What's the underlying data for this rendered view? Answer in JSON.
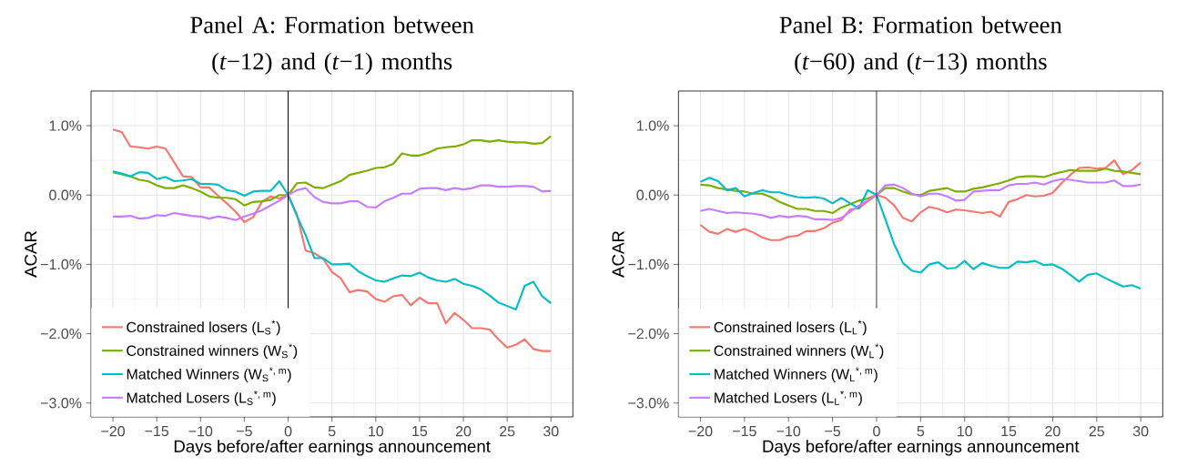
{
  "chart_data": [
    {
      "type": "line",
      "title": "Panel A: Formation between (*t*−12) and (*t*−1) months",
      "xlabel": "Days before/after earnings announcement",
      "ylabel": "ACAR",
      "x": [
        -20,
        -19,
        -18,
        -17,
        -16,
        -15,
        -14,
        -13,
        -12,
        -11,
        -10,
        -9,
        -8,
        -7,
        -6,
        -5,
        -4,
        -3,
        -2,
        -1,
        0,
        1,
        2,
        3,
        4,
        5,
        6,
        7,
        8,
        9,
        10,
        11,
        12,
        13,
        14,
        15,
        16,
        17,
        18,
        19,
        20,
        21,
        22,
        23,
        24,
        25,
        26,
        27,
        28,
        29,
        30
      ],
      "series": [
        {
          "name": "Constrained losers (L$_{S}$$^{*}$)",
          "color": "#f8766d",
          "values": [
            0.945,
            0.91,
            0.7,
            0.69,
            0.67,
            0.7,
            0.67,
            0.47,
            0.27,
            0.26,
            0.11,
            0.11,
            -0.01,
            -0.12,
            -0.24,
            -0.39,
            -0.32,
            -0.1,
            -0.02,
            -0.05,
            0,
            -0.28,
            -0.8,
            -0.84,
            -0.92,
            -1.11,
            -1.2,
            -1.4,
            -1.37,
            -1.39,
            -1.5,
            -1.54,
            -1.46,
            -1.44,
            -1.59,
            -1.48,
            -1.56,
            -1.56,
            -1.85,
            -1.7,
            -1.8,
            -1.92,
            -1.92,
            -1.94,
            -2.08,
            -2.2,
            -2.16,
            -2.08,
            -2.22,
            -2.25,
            -2.25
          ]
        },
        {
          "name": "Constrained winners (W$_{S}$$^{*}$)",
          "color": "#7cae00",
          "values": [
            0.33,
            0.3,
            0.27,
            0.22,
            0.2,
            0.14,
            0.1,
            0.1,
            0.14,
            0.1,
            0.05,
            -0.02,
            -0.04,
            -0.04,
            -0.06,
            -0.15,
            -0.1,
            -0.09,
            -0.07,
            0,
            0,
            0.17,
            0.18,
            0.11,
            0.1,
            0.15,
            0.2,
            0.29,
            0.32,
            0.35,
            0.39,
            0.4,
            0.45,
            0.6,
            0.57,
            0.57,
            0.61,
            0.67,
            0.69,
            0.7,
            0.73,
            0.79,
            0.79,
            0.77,
            0.79,
            0.77,
            0.76,
            0.76,
            0.74,
            0.75,
            0.85
          ]
        },
        {
          "name": "Matched Winners (W$_{S}$$^{*, m}$)",
          "color": "#00bfc4",
          "values": [
            0.34,
            0.31,
            0.27,
            0.33,
            0.32,
            0.23,
            0.26,
            0.2,
            0.21,
            0.23,
            0.16,
            0.16,
            0.15,
            0.07,
            0.05,
            -0.01,
            0.05,
            0.06,
            0.06,
            0.2,
            0,
            -0.3,
            -0.58,
            -0.91,
            -0.91,
            -1.0,
            -1.0,
            -0.99,
            -1.1,
            -1.17,
            -1.23,
            -1.25,
            -1.2,
            -1.16,
            -1.17,
            -1.12,
            -1.19,
            -1.23,
            -1.25,
            -1.21,
            -1.28,
            -1.31,
            -1.36,
            -1.45,
            -1.55,
            -1.6,
            -1.65,
            -1.31,
            -1.25,
            -1.46,
            -1.56
          ]
        },
        {
          "name": "Matched Losers (L$_{S}$$^{*, m}$)",
          "color": "#c77cff",
          "values": [
            -0.31,
            -0.31,
            -0.3,
            -0.34,
            -0.33,
            -0.29,
            -0.3,
            -0.26,
            -0.28,
            -0.3,
            -0.31,
            -0.34,
            -0.31,
            -0.33,
            -0.36,
            -0.31,
            -0.27,
            -0.22,
            -0.15,
            -0.08,
            0,
            0.07,
            0.1,
            -0.03,
            -0.1,
            -0.12,
            -0.12,
            -0.09,
            -0.09,
            -0.17,
            -0.18,
            -0.09,
            -0.04,
            0.02,
            0.02,
            0.09,
            0.1,
            0.1,
            0.07,
            0.1,
            0.08,
            0.1,
            0.14,
            0.14,
            0.12,
            0.12,
            0.13,
            0.13,
            0.12,
            0.05,
            0.06
          ]
        }
      ],
      "xlim": [
        -22.5,
        32.5
      ],
      "ylim": [
        -3.2,
        1.5
      ],
      "xticks": [
        {
          "value": -20,
          "label": "−20"
        },
        {
          "value": -15,
          "label": "−15"
        },
        {
          "value": -10,
          "label": "−10"
        },
        {
          "value": -5,
          "label": "−5"
        },
        0,
        5,
        10,
        15,
        20,
        25,
        30
      ],
      "yticks": [
        {
          "value": -3,
          "label": "−3.0%"
        },
        {
          "value": -2,
          "label": "−2.0%"
        },
        {
          "value": -1,
          "label": "−1.0%"
        },
        {
          "value": 0,
          "label": "0.0%"
        },
        {
          "value": 1,
          "label": "1.0%"
        }
      ],
      "grid": true,
      "legend": "bottom left",
      "ref_lines": [
        {
          "axis": "x",
          "value": 0,
          "color": "#000000"
        }
      ]
    },
    {
      "type": "line",
      "title": "Panel B: Formation between (*t*−60) and (*t*−13) months",
      "xlabel": "Days before/after earnings announcement",
      "ylabel": "ACAR",
      "x": [
        -20,
        -19,
        -18,
        -17,
        -16,
        -15,
        -14,
        -13,
        -12,
        -11,
        -10,
        -9,
        -8,
        -7,
        -6,
        -5,
        -4,
        -3,
        -2,
        -1,
        0,
        1,
        2,
        3,
        4,
        5,
        6,
        7,
        8,
        9,
        10,
        11,
        12,
        13,
        14,
        15,
        16,
        17,
        18,
        19,
        20,
        21,
        22,
        23,
        24,
        25,
        26,
        27,
        28,
        29,
        30
      ],
      "series": [
        {
          "name": "Constrained losers (L$_{L}$$^{*}$)",
          "color": "#f8766d",
          "values": [
            -0.43,
            -0.53,
            -0.56,
            -0.49,
            -0.53,
            -0.49,
            -0.54,
            -0.61,
            -0.65,
            -0.65,
            -0.6,
            -0.59,
            -0.52,
            -0.52,
            -0.48,
            -0.4,
            -0.36,
            -0.21,
            -0.19,
            -0.09,
            0,
            -0.04,
            -0.15,
            -0.33,
            -0.38,
            -0.25,
            -0.17,
            -0.2,
            -0.25,
            -0.21,
            -0.22,
            -0.24,
            -0.26,
            -0.24,
            -0.31,
            -0.1,
            -0.06,
            0,
            -0.02,
            -0.01,
            0.03,
            0.17,
            0.29,
            0.39,
            0.4,
            0.38,
            0.39,
            0.5,
            0.3,
            0.36,
            0.47
          ]
        },
        {
          "name": "Constrained winners (W$_{L}$$^{*}$)",
          "color": "#7cae00",
          "values": [
            0.15,
            0.14,
            0.1,
            0.08,
            0.06,
            0.05,
            0.02,
            0.02,
            -0.03,
            -0.1,
            -0.15,
            -0.2,
            -0.2,
            -0.23,
            -0.23,
            -0.26,
            -0.18,
            -0.13,
            -0.08,
            -0.05,
            0,
            0.1,
            0.1,
            0.05,
            0.01,
            0,
            0.06,
            0.08,
            0.1,
            0.05,
            0.05,
            0.09,
            0.11,
            0.14,
            0.17,
            0.21,
            0.26,
            0.27,
            0.27,
            0.26,
            0.3,
            0.33,
            0.36,
            0.35,
            0.35,
            0.35,
            0.38,
            0.35,
            0.34,
            0.32,
            0.3
          ]
        },
        {
          "name": "Matched Winners (W$_{L}$$^{*, m}$)",
          "color": "#00bfc4",
          "values": [
            0.19,
            0.25,
            0.2,
            0.07,
            0.1,
            -0.02,
            0.03,
            0.07,
            0.04,
            0.04,
            0,
            -0.03,
            -0.04,
            -0.03,
            -0.05,
            -0.12,
            -0.04,
            -0.12,
            -0.19,
            0.07,
            0,
            -0.35,
            -0.71,
            -0.98,
            -1.09,
            -1.12,
            -1.0,
            -0.97,
            -1.06,
            -1.05,
            -0.95,
            -1.07,
            -0.98,
            -1.02,
            -1.05,
            -1.05,
            -0.96,
            -0.97,
            -0.95,
            -1.01,
            -1.0,
            -1.06,
            -1.15,
            -1.25,
            -1.15,
            -1.13,
            -1.2,
            -1.26,
            -1.32,
            -1.3,
            -1.35
          ]
        },
        {
          "name": "Matched Losers (L$_{L}$$^{*, m}$)",
          "color": "#c77cff",
          "values": [
            -0.23,
            -0.2,
            -0.23,
            -0.26,
            -0.25,
            -0.26,
            -0.27,
            -0.29,
            -0.33,
            -0.3,
            -0.32,
            -0.3,
            -0.31,
            -0.35,
            -0.35,
            -0.36,
            -0.33,
            -0.24,
            -0.15,
            -0.08,
            0,
            0.14,
            0.15,
            0.1,
            0.02,
            -0.02,
            0.02,
            0.02,
            -0.02,
            -0.08,
            -0.07,
            0.05,
            0.06,
            0.07,
            0.07,
            0.14,
            0.16,
            0.16,
            0.18,
            0.15,
            0.2,
            0.23,
            0.22,
            0.2,
            0.18,
            0.18,
            0.18,
            0.21,
            0.13,
            0.13,
            0.15
          ]
        }
      ],
      "xlim": [
        -22.5,
        32.5
      ],
      "ylim": [
        -3.2,
        1.5
      ],
      "xticks": [
        {
          "value": -20,
          "label": "−20"
        },
        {
          "value": -15,
          "label": "−15"
        },
        {
          "value": -10,
          "label": "−10"
        },
        {
          "value": -5,
          "label": "−5"
        },
        0,
        5,
        10,
        15,
        20,
        25,
        30
      ],
      "yticks": [
        {
          "value": -3,
          "label": "−3.0%"
        },
        {
          "value": -2,
          "label": "−2.0%"
        },
        {
          "value": -1,
          "label": "−1.0%"
        },
        {
          "value": 0,
          "label": "0.0%"
        },
        {
          "value": 1,
          "label": "1.0%"
        }
      ],
      "grid": true,
      "legend": "bottom left",
      "ref_lines": [
        {
          "axis": "x",
          "value": 0,
          "color": "#000000"
        }
      ]
    }
  ]
}
